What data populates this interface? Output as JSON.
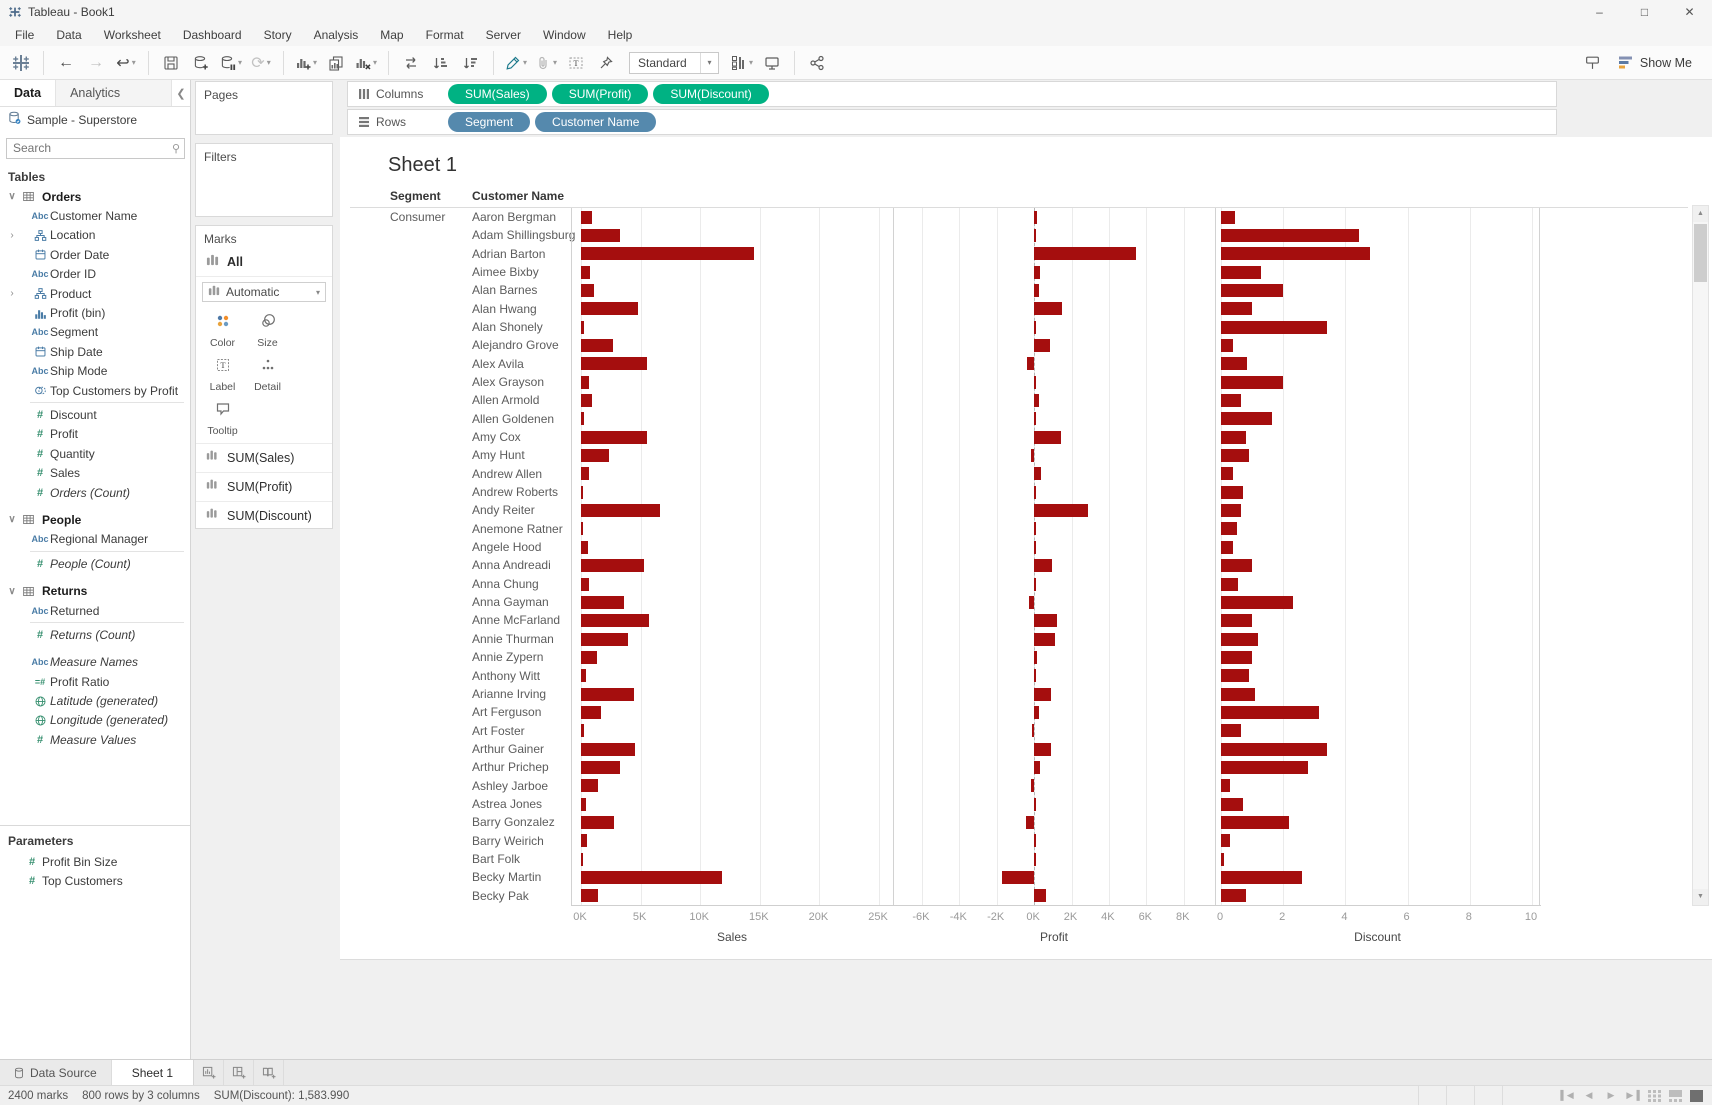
{
  "window": {
    "title": "Tableau - Book1"
  },
  "menu": {
    "items": [
      "File",
      "Data",
      "Worksheet",
      "Dashboard",
      "Story",
      "Analysis",
      "Map",
      "Format",
      "Server",
      "Window",
      "Help"
    ]
  },
  "toolbar": {
    "fit_mode": "Standard",
    "show_me_label": "Show Me"
  },
  "data_pane": {
    "tabs": [
      {
        "label": "Data",
        "active": true
      },
      {
        "label": "Analytics",
        "active": false
      }
    ],
    "connection": "Sample - Superstore",
    "search_placeholder": "Search",
    "tables_header": "Tables",
    "sections": [
      {
        "table": "Orders",
        "fields": [
          {
            "icon": "abc",
            "label": "Customer Name"
          },
          {
            "icon": "hierarchy",
            "label": "Location",
            "expandable": true
          },
          {
            "icon": "calendar",
            "label": "Order Date"
          },
          {
            "icon": "abc",
            "label": "Order ID"
          },
          {
            "icon": "hierarchy",
            "label": "Product",
            "expandable": true
          },
          {
            "icon": "histogram",
            "label": "Profit (bin)"
          },
          {
            "icon": "abc",
            "label": "Segment"
          },
          {
            "icon": "calendar",
            "label": "Ship Date"
          },
          {
            "icon": "abc",
            "label": "Ship Mode"
          },
          {
            "icon": "set",
            "label": "Top Customers by Profit"
          },
          {
            "divider": true
          },
          {
            "icon": "num",
            "label": "Discount"
          },
          {
            "icon": "num",
            "label": "Profit"
          },
          {
            "icon": "num",
            "label": "Quantity"
          },
          {
            "icon": "num",
            "label": "Sales"
          },
          {
            "icon": "num",
            "label": "Orders (Count)",
            "italic": true
          }
        ]
      },
      {
        "table": "People",
        "fields": [
          {
            "icon": "abc",
            "label": "Regional Manager"
          },
          {
            "divider": true
          },
          {
            "icon": "num",
            "label": "People (Count)",
            "italic": true
          }
        ]
      },
      {
        "table": "Returns",
        "fields": [
          {
            "icon": "abc",
            "label": "Returned"
          },
          {
            "divider": true
          },
          {
            "icon": "num",
            "label": "Returns (Count)",
            "italic": true
          }
        ]
      },
      {
        "table": null,
        "fields": [
          {
            "icon": "abc",
            "label": "Measure Names",
            "italic": true
          },
          {
            "icon": "eqnum",
            "label": "Profit Ratio"
          },
          {
            "icon": "globe",
            "label": "Latitude (generated)",
            "italic": true
          },
          {
            "icon": "globe",
            "label": "Longitude (generated)",
            "italic": true
          },
          {
            "icon": "num",
            "label": "Measure Values",
            "italic": true
          }
        ]
      }
    ],
    "parameters_header": "Parameters",
    "parameters": [
      {
        "icon": "num",
        "label": "Profit Bin Size"
      },
      {
        "icon": "num",
        "label": "Top Customers"
      }
    ]
  },
  "cards": {
    "pages_label": "Pages",
    "filters_label": "Filters",
    "marks_label": "Marks",
    "marks_all_label": "All",
    "mark_type": "Automatic",
    "mark_buttons": [
      {
        "icon": "color",
        "label": "Color"
      },
      {
        "icon": "size",
        "label": "Size"
      },
      {
        "icon": "label",
        "label": "Label"
      },
      {
        "icon": "detail",
        "label": "Detail"
      },
      {
        "icon": "tooltip",
        "label": "Tooltip"
      }
    ],
    "measure_cards": [
      "SUM(Sales)",
      "SUM(Profit)",
      "SUM(Discount)"
    ]
  },
  "shelves": {
    "columns_label": "Columns",
    "rows_label": "Rows",
    "columns_pills": [
      "SUM(Sales)",
      "SUM(Profit)",
      "SUM(Discount)"
    ],
    "rows_pills": [
      "Segment",
      "Customer Name"
    ],
    "pill_colors": {
      "measure": "#00b283",
      "dimension": "#5589ad"
    }
  },
  "sheet": {
    "title": "Sheet 1"
  },
  "chart_data": {
    "type": "bar",
    "orientation": "horizontal",
    "bar_color": "#a50e0e",
    "row_headers": {
      "segment_label": "Segment",
      "customer_label": "Customer Name"
    },
    "segment": "Consumer",
    "customers": [
      "Aaron Bergman",
      "Adam Shillingsburg",
      "Adrian Barton",
      "Aimee Bixby",
      "Alan Barnes",
      "Alan Hwang",
      "Alan Shonely",
      "Alejandro Grove",
      "Alex Avila",
      "Alex Grayson",
      "Allen Armold",
      "Allen Goldenen",
      "Amy Cox",
      "Amy Hunt",
      "Andrew Allen",
      "Andrew Roberts",
      "Andy Reiter",
      "Anemone Ratner",
      "Angele Hood",
      "Anna Andreadi",
      "Anna Chung",
      "Anna Gayman",
      "Anne McFarland",
      "Annie Thurman",
      "Annie Zypern",
      "Anthony Witt",
      "Arianne Irving",
      "Art Ferguson",
      "Art Foster",
      "Arthur Gainer",
      "Arthur Prichep",
      "Ashley Jarboe",
      "Astrea Jones",
      "Barry Gonzalez",
      "Barry Weirich",
      "Bart Folk",
      "Becky Martin",
      "Becky Pak"
    ],
    "series": [
      {
        "name": "Sales",
        "axis_title": "Sales",
        "tick_values": [
          0,
          5000,
          10000,
          15000,
          20000,
          25000
        ],
        "tick_labels": [
          "0K",
          "5K",
          "10K",
          "15K",
          "20K",
          "25K"
        ],
        "range": [
          -755,
          26260
        ],
        "values": [
          890,
          3250,
          14475,
          785,
          1115,
          4805,
          270,
          2660,
          5565,
          700,
          915,
          220,
          5560,
          2330,
          700,
          200,
          6610,
          200,
          590,
          5250,
          670,
          3610,
          5685,
          3920,
          1320,
          380,
          4405,
          1700,
          250,
          4520,
          3270,
          1450,
          400,
          2790,
          490,
          90,
          11790,
          1450
        ]
      },
      {
        "name": "Profit",
        "axis_title": "Profit",
        "tick_values": [
          -6000,
          -4000,
          -2000,
          0,
          2000,
          4000,
          6000,
          8000
        ],
        "tick_labels": [
          "-6K",
          "-4K",
          "-2K",
          "0K",
          "2K",
          "4K",
          "6K",
          "8K"
        ],
        "range": [
          -7490,
          9730
        ],
        "values": [
          150,
          55,
          5445,
          330,
          270,
          1490,
          30,
          860,
          -360,
          45,
          280,
          25,
          1450,
          -180,
          370,
          25,
          2910,
          20,
          85,
          960,
          35,
          -275,
          1250,
          1110,
          150,
          45,
          900,
          250,
          -90,
          910,
          310,
          -165,
          115,
          -445,
          45,
          30,
          -1740,
          665
        ]
      },
      {
        "name": "Discount",
        "axis_title": "Discount",
        "tick_values": [
          0,
          2,
          4,
          6,
          8,
          10
        ],
        "tick_labels": [
          "0",
          "2",
          "4",
          "6",
          "8",
          "10"
        ],
        "range": [
          -0.16,
          10.29
        ],
        "values": [
          0.45,
          4.45,
          4.8,
          1.3,
          2.0,
          1.0,
          3.4,
          0.4,
          0.85,
          2.0,
          0.65,
          1.65,
          0.8,
          0.9,
          0.4,
          0.7,
          0.65,
          0.5,
          0.4,
          1.0,
          0.55,
          2.3,
          1.0,
          1.2,
          1.0,
          0.9,
          1.1,
          3.15,
          0.65,
          3.4,
          2.8,
          0.3,
          0.7,
          2.2,
          0.3,
          0.1,
          2.6,
          0.8
        ]
      }
    ]
  },
  "tabs_bar": {
    "data_source_label": "Data Source",
    "sheet_tab": "Sheet 1"
  },
  "status_bar": {
    "marks_count": "2400 marks",
    "row_col": "800 rows by 3 columns",
    "aggregate": "SUM(Discount): 1,583.990"
  }
}
